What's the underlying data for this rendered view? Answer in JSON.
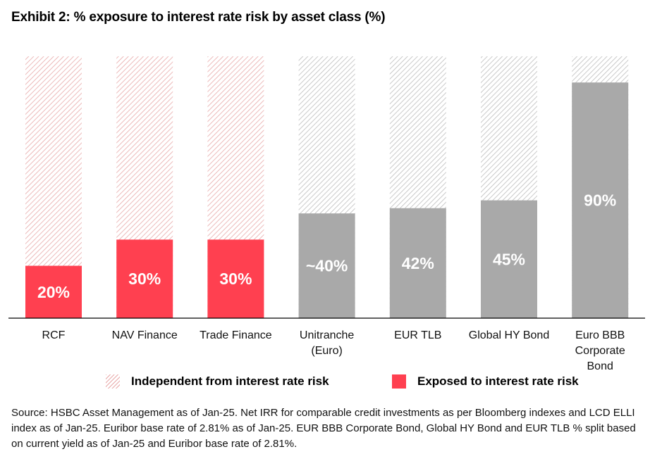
{
  "title": "Exhibit 2: % exposure to interest rate risk by asset class (%)",
  "chart_data": {
    "type": "bar",
    "stacked": true,
    "title": "Exhibit 2: % exposure to interest rate risk by asset class (%)",
    "categories": [
      [
        "RCF"
      ],
      [
        "NAV Finance"
      ],
      [
        "Trade Finance"
      ],
      [
        "Unitranche",
        "(Euro)"
      ],
      [
        "EUR TLB"
      ],
      [
        "Global HY Bond"
      ],
      [
        "Euro BBB",
        "Corporate",
        "Bond"
      ]
    ],
    "series": [
      {
        "name": "Exposed to interest rate risk",
        "values": [
          20,
          30,
          30,
          40,
          42,
          45,
          90
        ]
      },
      {
        "name": "Independent from interest rate risk",
        "values": [
          80,
          70,
          70,
          60,
          58,
          55,
          10
        ]
      }
    ],
    "data_labels": [
      "20%",
      "30%",
      "30%",
      "~40%",
      "42%",
      "45%",
      "90%"
    ],
    "colors": {
      "exposed_private": "#ff4050",
      "exposed_public": "#a9a9a9",
      "hatch_private": "#e8a9a9",
      "hatch_public": "#bdbdbd"
    },
    "highlight_count": 3,
    "ylim": [
      0,
      100
    ],
    "xlabel": "",
    "ylabel": "",
    "legend_position": "bottom"
  },
  "legend": {
    "independent": "Independent from interest rate risk",
    "exposed": "Exposed to interest rate risk"
  },
  "source": "Source: HSBC Asset Management as of Jan-25. Net IRR for comparable credit investments as per Bloomberg indexes and LCD ELLI index as of Jan-25. Euribor base rate of 2.81% as of Jan-25. EUR BBB Corporate Bond, Global HY Bond and EUR TLB % split based on current yield as of Jan-25 and Euribor base rate of 2.81%."
}
